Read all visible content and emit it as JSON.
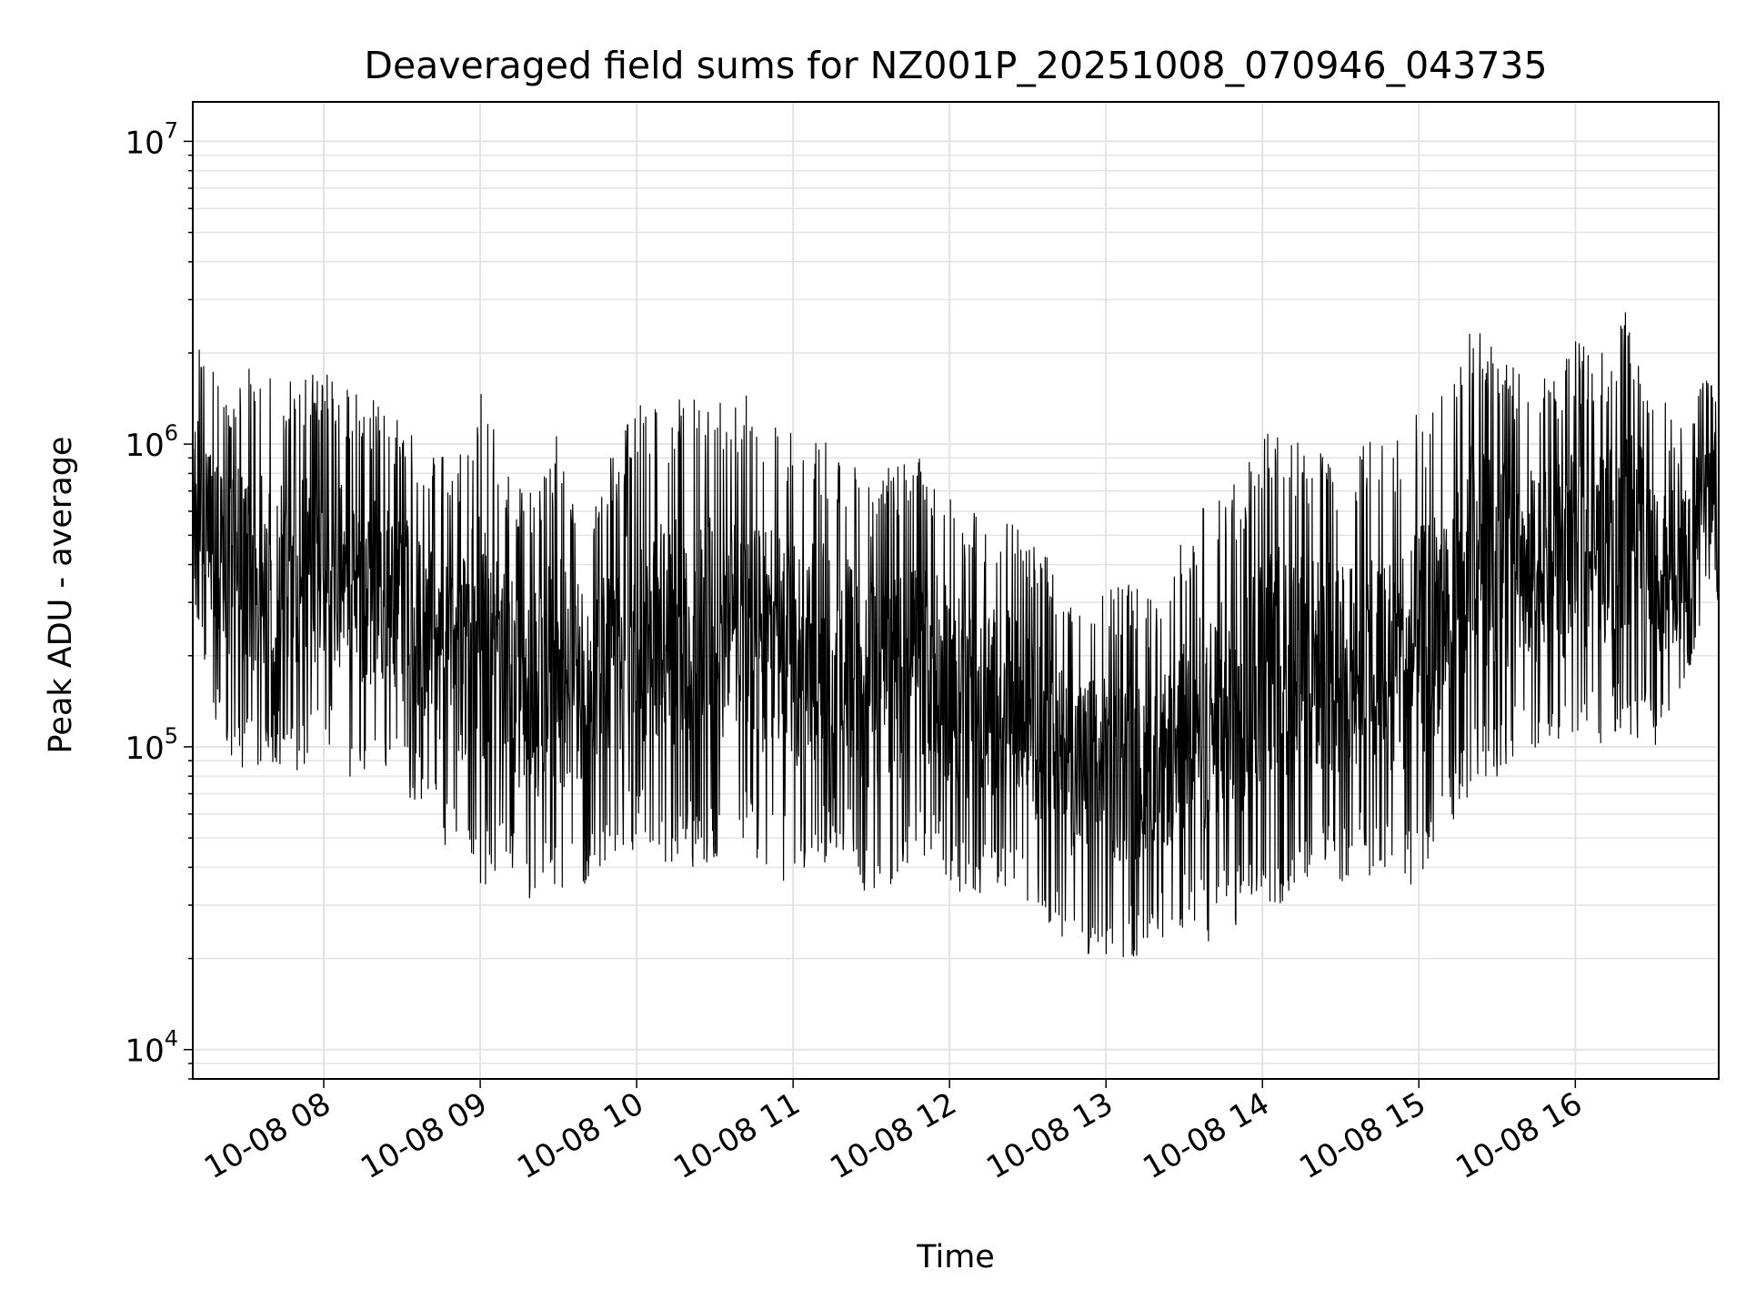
{
  "chart_data": {
    "type": "line",
    "title": "Deaveraged field sums for NZ001P_20251008_070946_043735",
    "xlabel": "Time",
    "ylabel": "Peak ADU - average",
    "xlim": [
      "2025-10-08 07:09:46",
      "2025-10-08 16:55:00"
    ],
    "ylim": [
      8000,
      13500000
    ],
    "yscale": "log",
    "grid": true,
    "legend": "none",
    "line_color": "#000000",
    "x_tick_labels": [
      "10-08 08",
      "10-08 09",
      "10-08 10",
      "10-08 11",
      "10-08 12",
      "10-08 13",
      "10-08 14",
      "10-08 15",
      "10-08 16"
    ],
    "x_tick_values": [
      "2025-10-08 08:00",
      "2025-10-08 09:00",
      "2025-10-08 10:00",
      "2025-10-08 11:00",
      "2025-10-08 12:00",
      "2025-10-08 13:00",
      "2025-10-08 14:00",
      "2025-10-08 15:00",
      "2025-10-08 16:00"
    ],
    "y_tick_values": [
      10000,
      100000,
      1000000,
      10000000
    ],
    "y_tick_labels": [
      {
        "base": "10",
        "exp": "4"
      },
      {
        "base": "10",
        "exp": "5"
      },
      {
        "base": "10",
        "exp": "6"
      },
      {
        "base": "10",
        "exp": "7"
      }
    ],
    "series": [
      {
        "x": [
          "2025-10-08 07:10",
          "2025-10-08 07:20",
          "2025-10-08 07:30",
          "2025-10-08 07:40",
          "2025-10-08 07:50",
          "2025-10-08 08:00",
          "2025-10-08 08:10",
          "2025-10-08 08:20",
          "2025-10-08 08:30",
          "2025-10-08 08:40",
          "2025-10-08 08:50",
          "2025-10-08 09:00",
          "2025-10-08 09:10",
          "2025-10-08 09:20",
          "2025-10-08 09:30",
          "2025-10-08 09:40",
          "2025-10-08 09:50",
          "2025-10-08 10:00",
          "2025-10-08 10:10",
          "2025-10-08 10:20",
          "2025-10-08 10:30",
          "2025-10-08 10:40",
          "2025-10-08 10:50",
          "2025-10-08 11:00",
          "2025-10-08 11:10",
          "2025-10-08 11:20",
          "2025-10-08 11:30",
          "2025-10-08 11:40",
          "2025-10-08 11:50",
          "2025-10-08 12:00",
          "2025-10-08 12:10",
          "2025-10-08 12:20",
          "2025-10-08 12:30",
          "2025-10-08 12:40",
          "2025-10-08 12:50",
          "2025-10-08 13:00",
          "2025-10-08 13:10",
          "2025-10-08 13:20",
          "2025-10-08 13:30",
          "2025-10-08 13:40",
          "2025-10-08 13:50",
          "2025-10-08 14:00",
          "2025-10-08 14:10",
          "2025-10-08 14:20",
          "2025-10-08 14:30",
          "2025-10-08 14:40",
          "2025-10-08 14:50",
          "2025-10-08 15:00",
          "2025-10-08 15:10",
          "2025-10-08 15:20",
          "2025-10-08 15:30",
          "2025-10-08 15:40",
          "2025-10-08 15:50",
          "2025-10-08 16:00",
          "2025-10-08 16:10",
          "2025-10-08 16:20",
          "2025-10-08 16:30",
          "2025-10-08 16:40",
          "2025-10-08 16:50"
        ],
        "y_low": [
          300000,
          100000,
          80000,
          85000,
          80000,
          90000,
          80000,
          75000,
          70000,
          60000,
          40000,
          35000,
          35000,
          30000,
          30000,
          35000,
          40000,
          45000,
          40000,
          40000,
          40000,
          45000,
          35000,
          35000,
          40000,
          45000,
          30000,
          35000,
          40000,
          35000,
          30000,
          35000,
          30000,
          25000,
          20000,
          20000,
          20000,
          22000,
          25000,
          22000,
          25000,
          30000,
          30000,
          35000,
          35000,
          38000,
          35000,
          35000,
          50000,
          70000,
          80000,
          90000,
          85000,
          90000,
          100000,
          110000,
          100000,
          120000,
          300000
        ],
        "y_high": [
          2300000,
          1600000,
          1850000,
          1800000,
          1600000,
          1900000,
          1500000,
          1400000,
          1200000,
          950000,
          900000,
          1500000,
          850000,
          700000,
          1100000,
          700000,
          900000,
          1400000,
          1500000,
          1400000,
          1400000,
          1500000,
          1300000,
          1200000,
          1100000,
          900000,
          800000,
          850000,
          900000,
          700000,
          600000,
          600000,
          500000,
          400000,
          350000,
          350000,
          350000,
          300000,
          500000,
          700000,
          750000,
          1100000,
          1200000,
          1000000,
          900000,
          1100000,
          1000000,
          1300000,
          1700000,
          2500000,
          2000000,
          1800000,
          1700000,
          2200000,
          2000000,
          2800000,
          1600000,
          1200000,
          1700000
        ]
      }
    ]
  }
}
